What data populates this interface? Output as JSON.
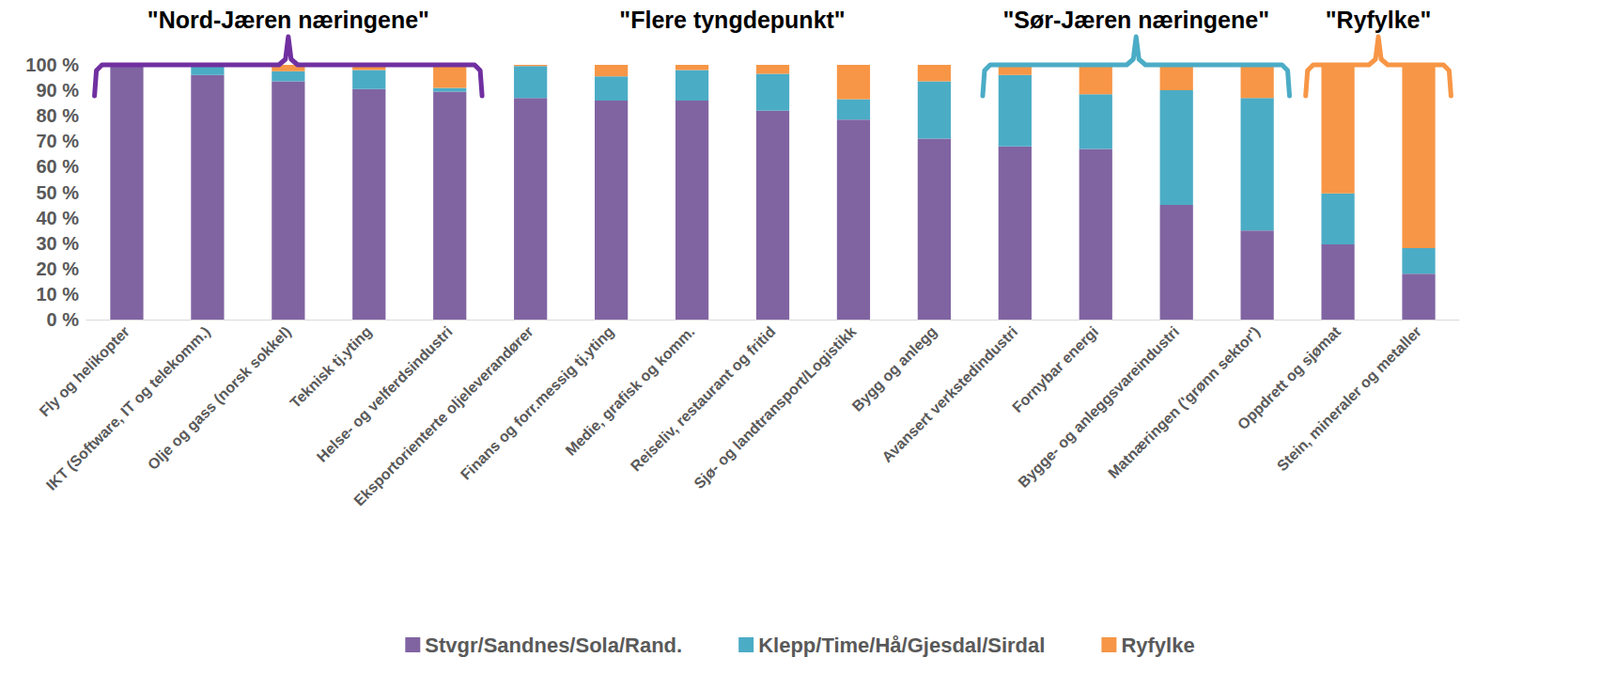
{
  "chart_data": {
    "type": "bar",
    "stacked": true,
    "grid": false,
    "legend": "bottom",
    "categories": [
      "Fly og helikopter",
      "IKT (Software, IT og telekomm.)",
      "Olje og gass (norsk sokkel)",
      "Teknisk tj.yting",
      "Helse- og velferdsindustri",
      "Eksportorienterte oljeleverandører",
      "Finans og forr.messig tj.yting",
      "Medie, grafisk og komm.",
      "Reiseliv, restaurant og fritid",
      "Sjø- og landtransport/Logistikk",
      "Bygg og anlegg",
      "Avansert verkstedindustri",
      "Fornybar energi",
      "Bygge- og anleggsvareindustri",
      "Matnæringen ('grønn sektor')",
      "Oppdrett og sjømat",
      "Stein, mineraler og metaller"
    ],
    "series": [
      {
        "name": "Stvgr/Sandnes/Sola/Rand.",
        "color": "#8064a2",
        "values": [
          100,
          96,
          93.5,
          90.5,
          89.5,
          87,
          86,
          86,
          82,
          78.5,
          71,
          68,
          67,
          45,
          35,
          29.5,
          18
        ]
      },
      {
        "name": "Klepp/Time/Hå/Gjesdal/Sirdal",
        "color": "#4bacc6",
        "values": [
          0,
          4,
          4,
          7.5,
          1.5,
          12.5,
          9.5,
          12,
          14.5,
          8,
          22.5,
          28,
          21.5,
          45,
          52,
          20,
          10
        ]
      },
      {
        "name": "Ryfylke",
        "color": "#f79646",
        "values": [
          0,
          0,
          2.5,
          2,
          9,
          0.5,
          4.5,
          2,
          3.5,
          13.5,
          6.5,
          4,
          11.5,
          10,
          13,
          50.5,
          72
        ]
      }
    ],
    "ylim": [
      0,
      100
    ],
    "yticks": [
      {
        "value": 0,
        "label": "0 %"
      },
      {
        "value": 10,
        "label": "10 %"
      },
      {
        "value": 20,
        "label": "20 %"
      },
      {
        "value": 30,
        "label": "30 %"
      },
      {
        "value": 40,
        "label": "40 %"
      },
      {
        "value": 50,
        "label": "50 %"
      },
      {
        "value": 60,
        "label": "60 %"
      },
      {
        "value": 70,
        "label": "70 %"
      },
      {
        "value": 80,
        "label": "80 %"
      },
      {
        "value": 90,
        "label": "90 %"
      },
      {
        "value": 100,
        "label": "100 %"
      }
    ],
    "annotations": [
      {
        "text": "\"Nord-Jæren næringene\"",
        "from": "Fly og helikopter",
        "to": "Helse- og velferdsindustri",
        "color": "#7030a0"
      },
      {
        "text": "\"Flere tyngdepunkt\"",
        "from": "Eksportorienterte oljeleverandører",
        "to": "Bygg og anlegg"
      },
      {
        "text": "\"Sør-Jæren næringene\"",
        "from": "Avansert verkstedindustri",
        "to": "Matnæringen ('grønn sektor')",
        "color": "#4bacc6"
      },
      {
        "text": "\"Ryfylke\"",
        "from": "Oppdrett og sjømat",
        "to": "Stein, mineraler og metaller",
        "color": "#f79646"
      }
    ]
  }
}
